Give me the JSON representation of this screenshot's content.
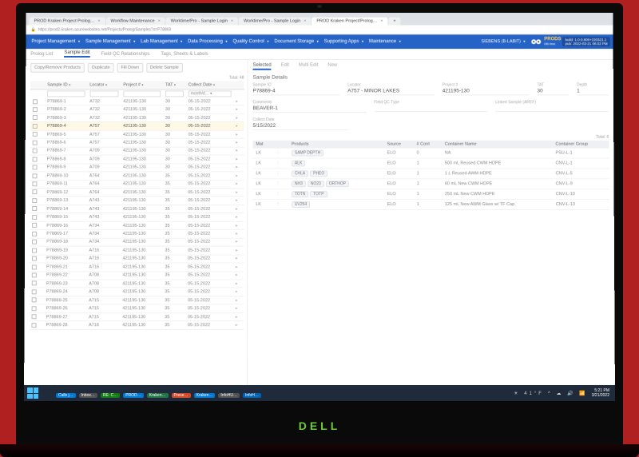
{
  "browser": {
    "tabs": [
      {
        "label": "PROD Kraken Project Prolog…"
      },
      {
        "label": "Workflow Maintenance"
      },
      {
        "label": "Worktime/Pro - Sample Login"
      },
      {
        "label": "Worktime/Pro - Sample Login"
      },
      {
        "label": "PROD Kraken Project/Prolog…",
        "active": true
      }
    ],
    "url": "https://prod2-kraken.azurewebsites.net/Projects/Prolog/Samples?s=P78869"
  },
  "nav": {
    "items": [
      "Project Management",
      "Sample Management",
      "Lab Management",
      "Data Processing",
      "Quality Control",
      "Document Storage",
      "Supporting Apps",
      "Maintenance"
    ],
    "user": "SIEBENS (B-LABIT)",
    "brand": "PRODS",
    "brand_sub": "DB time",
    "build1": "build: 1.0.0.806+220321.1",
    "build2": "pub: 2022-03-21 06:02 PM"
  },
  "subtabs": [
    "Prolog List",
    "Sample Edit",
    "Field QC Relationships",
    "Tags, Sheets & Labels"
  ],
  "subtabs_active": 1,
  "left": {
    "toolbar": [
      "Copy/Remove Products",
      "Duplicate",
      "Fill Down",
      "Delete Sample"
    ],
    "total_label": "Total: 48",
    "columns": [
      "",
      "Sample ID",
      "Locator",
      "Project #",
      "TAT",
      "Collect Date",
      ""
    ],
    "date_filter": "month/d… ▾",
    "rows": [
      {
        "id": "P78869-1",
        "loc": "A732",
        "proj": "421195-130",
        "tat": "30",
        "date": "05-15-2022"
      },
      {
        "id": "P78869-2",
        "loc": "A732",
        "proj": "421195-130",
        "tat": "30",
        "date": "05-15-2022"
      },
      {
        "id": "P78869-3",
        "loc": "A732",
        "proj": "421195-130",
        "tat": "30",
        "date": "05-15-2022"
      },
      {
        "id": "P78869-4",
        "loc": "A757",
        "proj": "421195-130",
        "tat": "30",
        "date": "05-15-2022",
        "hl": true
      },
      {
        "id": "P78869-5",
        "loc": "A757",
        "proj": "421195-130",
        "tat": "30",
        "date": "05-15-2022"
      },
      {
        "id": "P78869-6",
        "loc": "A757",
        "proj": "421195-130",
        "tat": "30",
        "date": "05-15-2022"
      },
      {
        "id": "P78869-7",
        "loc": "A709",
        "proj": "421195-130",
        "tat": "30",
        "date": "05-15-2022"
      },
      {
        "id": "P78869-8",
        "loc": "A709",
        "proj": "421195-130",
        "tat": "30",
        "date": "05-15-2022"
      },
      {
        "id": "P78869-9",
        "loc": "A709",
        "proj": "421195-130",
        "tat": "30",
        "date": "05-15-2022"
      },
      {
        "id": "P78869-10",
        "loc": "A764",
        "proj": "421195-130",
        "tat": "35",
        "date": "05-15-2022"
      },
      {
        "id": "P78869-11",
        "loc": "A764",
        "proj": "421195-130",
        "tat": "35",
        "date": "05-15-2022"
      },
      {
        "id": "P78869-12",
        "loc": "A764",
        "proj": "421195-130",
        "tat": "35",
        "date": "05-15-2022"
      },
      {
        "id": "P78869-13",
        "loc": "A743",
        "proj": "421195-130",
        "tat": "35",
        "date": "05-15-2022"
      },
      {
        "id": "P78869-14",
        "loc": "A743",
        "proj": "421195-130",
        "tat": "35",
        "date": "05-15-2022"
      },
      {
        "id": "P78869-15",
        "loc": "A743",
        "proj": "421195-130",
        "tat": "35",
        "date": "05-15-2022"
      },
      {
        "id": "P78869-16",
        "loc": "A734",
        "proj": "421195-130",
        "tat": "35",
        "date": "05-15-2022"
      },
      {
        "id": "P78869-17",
        "loc": "A734",
        "proj": "421195-130",
        "tat": "35",
        "date": "05-15-2022"
      },
      {
        "id": "P78869-18",
        "loc": "A734",
        "proj": "421195-130",
        "tat": "35",
        "date": "05-15-2022"
      },
      {
        "id": "P78869-19",
        "loc": "A716",
        "proj": "421195-130",
        "tat": "35",
        "date": "05-15-2022"
      },
      {
        "id": "P78869-20",
        "loc": "A716",
        "proj": "421195-130",
        "tat": "35",
        "date": "05-15-2022"
      },
      {
        "id": "P78869-21",
        "loc": "A716",
        "proj": "421195-130",
        "tat": "35",
        "date": "05-15-2022"
      },
      {
        "id": "P78869-22",
        "loc": "A708",
        "proj": "421195-130",
        "tat": "35",
        "date": "05-15-2022"
      },
      {
        "id": "P78869-23",
        "loc": "A708",
        "proj": "421195-130",
        "tat": "35",
        "date": "05-15-2022"
      },
      {
        "id": "P78869-24",
        "loc": "A708",
        "proj": "421195-130",
        "tat": "35",
        "date": "05-15-2022"
      },
      {
        "id": "P78869-25",
        "loc": "A715",
        "proj": "421195-130",
        "tat": "35",
        "date": "05-15-2022"
      },
      {
        "id": "P78869-26",
        "loc": "A715",
        "proj": "421195-130",
        "tat": "35",
        "date": "05-15-2022"
      },
      {
        "id": "P78869-27",
        "loc": "A715",
        "proj": "421195-130",
        "tat": "35",
        "date": "05-15-2022"
      },
      {
        "id": "P78869-28",
        "loc": "A718",
        "proj": "421195-130",
        "tat": "35",
        "date": "05-15-2022"
      }
    ]
  },
  "detail": {
    "tabs": [
      "Selected",
      "Edit",
      "Multi Edit",
      "New"
    ],
    "tabs_active": 0,
    "section": "Sample Details",
    "sample_id_lbl": "Sample ID",
    "sample_id": "P78869-4",
    "locator_lbl": "Locator",
    "locator": "A757 - MINOR LAKES",
    "project_lbl": "Project #",
    "project": "421195-130",
    "tat_lbl": "TAT",
    "tat": "30",
    "depth_lbl": "Depth",
    "depth": "1",
    "comments_lbl": "Comments",
    "comments": "BEAVER-1",
    "fieldqc_lbl": "Field QC Type",
    "fieldqc": "",
    "linked_lbl": "Linked Sample (AREF)",
    "linked": "",
    "collect_lbl": "Collect Date",
    "collect": "5/15/2022",
    "prod_total": "Total: 6",
    "prod_cols": [
      "Mat",
      "",
      "Products",
      "Source",
      "# Cont",
      "Container Name",
      "Container Group"
    ],
    "prod_rows": [
      {
        "mat": "LK",
        "prods": [
          "SAMP DEPTH"
        ],
        "src": "ELO",
        "n": "0",
        "cname": "NA",
        "cgrp": "PSU-L-1"
      },
      {
        "mat": "LK",
        "prods": [
          "ALK"
        ],
        "src": "ELO",
        "n": "1",
        "cname": "500 mL Reused CWM HDPE",
        "cgrp": "CNV-L-1"
      },
      {
        "mat": "LK",
        "prods": [
          "CHLA",
          "PHEO"
        ],
        "src": "ELO",
        "n": "1",
        "cname": "1 L Reused AWM HDPE",
        "cgrp": "CNV-L-5"
      },
      {
        "mat": "LK",
        "prods": [
          "NH3",
          "NO23",
          "ORTHOP"
        ],
        "src": "ELO",
        "n": "1",
        "cname": "60 mL New CWM HDPE",
        "cgrp": "CNV-L-9"
      },
      {
        "mat": "LK",
        "prods": [
          "TOTN",
          "TOTP"
        ],
        "src": "ELO",
        "n": "1",
        "cname": "250 mL New CWM HDPE",
        "cgrp": "CNV-L-10"
      },
      {
        "mat": "LK",
        "prods": [
          "UV254"
        ],
        "src": "ELO",
        "n": "1",
        "cname": "125 mL New AWM Glass w/ TF Cap",
        "cgrp": "CNV-L-13"
      }
    ]
  },
  "taskbar": {
    "icons": [
      {
        "c": "#2b579a"
      },
      {
        "c": "#217346"
      },
      {
        "c": "#d83b01"
      },
      {
        "c": "#ffb900"
      },
      {
        "c": "#7b4fa8"
      },
      {
        "c": "#0078d4",
        "lbl": "Calls j…"
      },
      {
        "c": "#505050",
        "lbl": "Inbox…"
      },
      {
        "c": "#107c10",
        "lbl": "RE: C…"
      },
      {
        "c": "#0078d4",
        "lbl": "PROD…"
      },
      {
        "c": "#217346",
        "lbl": "Kraken…"
      },
      {
        "c": "#d24726",
        "lbl": "Prese…"
      },
      {
        "c": "#0078d4",
        "lbl": "Kraken…"
      },
      {
        "c": "#505050",
        "lbl": "InfoHU…"
      },
      {
        "c": "#0063b1",
        "lbl": "InfoH…"
      }
    ],
    "temp": "41°F",
    "time": "5:21 PM",
    "date": "3/21/2022"
  }
}
